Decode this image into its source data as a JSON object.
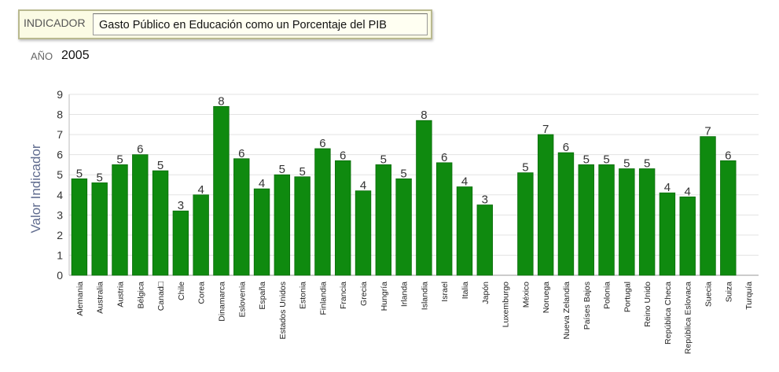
{
  "indicator": {
    "label": "INDICADOR",
    "value": "Gasto Público en Educación como un Porcentaje del PIB"
  },
  "year": {
    "label": "AÑO",
    "value": "2005"
  },
  "chart_data": {
    "type": "bar",
    "ylabel": "Valor Indicador",
    "ylim": [
      0,
      9
    ],
    "yticks": [
      0,
      1,
      2,
      3,
      4,
      5,
      6,
      7,
      8,
      9
    ],
    "grid": true,
    "bar_color": "#0f8a0f",
    "categories": [
      "Alemania",
      "Australia",
      "Austria",
      "Bélgica",
      "Canad□",
      "Chile",
      "Corea",
      "Dinamarca",
      "Eslovenia",
      "España",
      "Estados Unidos",
      "Estonia",
      "Finlandia",
      "Francia",
      "Grecia",
      "Hungría",
      "Irlanda",
      "Islandia",
      "Israel",
      "Italia",
      "Japón",
      "Luxemburgo",
      "México",
      "Noruega",
      "Nueva Zelandia",
      "Países Bajos",
      "Polonia",
      "Portugal",
      "Reino Unido",
      "República Checa",
      "República Eslovaca",
      "Suecia",
      "Suiza",
      "Turquía"
    ],
    "values": [
      4.8,
      4.6,
      5.5,
      6.0,
      5.2,
      3.2,
      4.0,
      8.4,
      5.8,
      4.3,
      5.0,
      4.9,
      6.3,
      5.7,
      4.2,
      5.5,
      4.8,
      7.7,
      5.6,
      4.4,
      3.5,
      null,
      5.1,
      7.0,
      6.1,
      5.5,
      5.5,
      5.3,
      5.3,
      4.1,
      3.9,
      6.9,
      5.7,
      null
    ],
    "data_labels": [
      "5",
      "5",
      "5",
      "6",
      "5",
      "3",
      "4",
      "8",
      "6",
      "4",
      "5",
      "5",
      "6",
      "6",
      "4",
      "5",
      "5",
      "8",
      "6",
      "4",
      "3",
      "",
      "5",
      "7",
      "6",
      "5",
      "5",
      "5",
      "5",
      "4",
      "4",
      "7",
      "6",
      ""
    ]
  }
}
